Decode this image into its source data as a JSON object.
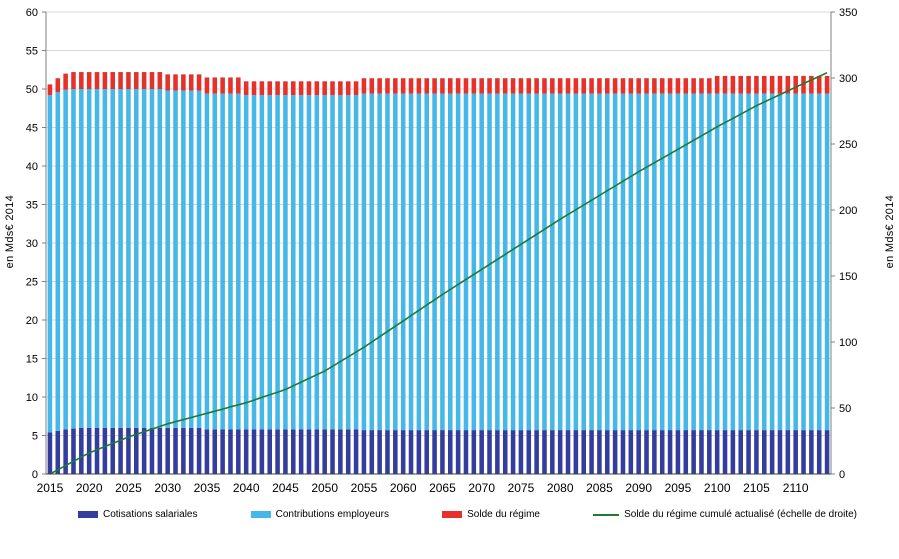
{
  "page": {
    "background": "#ffffff"
  },
  "chart_data": {
    "type": "bar",
    "title": "",
    "x_start": 2015,
    "x_count": 100,
    "x_ticks": [
      2015,
      2020,
      2025,
      2030,
      2035,
      2040,
      2045,
      2050,
      2055,
      2060,
      2065,
      2070,
      2075,
      2080,
      2085,
      2090,
      2095,
      2100,
      2105,
      2110
    ],
    "ylabel_left": "en Mds€ 2014",
    "ylabel_right": "en Mds€ 2014",
    "y_left": {
      "min": 0,
      "max": 60,
      "ticks": [
        0,
        5,
        10,
        15,
        20,
        25,
        30,
        35,
        40,
        45,
        50,
        55,
        60
      ]
    },
    "y_right": {
      "min": 0,
      "max": 350,
      "ticks": [
        0,
        50,
        100,
        150,
        200,
        250,
        300,
        350
      ]
    },
    "grid": true,
    "grid_color": "#d9d9d9",
    "axis_color": "#808080",
    "legend_position": "bottom",
    "series": [
      {
        "name": "Cotisations salariales",
        "type": "bar",
        "stack": true,
        "color": "#333d9e",
        "values": [
          5.4,
          5.6,
          5.8,
          5.9,
          6,
          6,
          6,
          6,
          6,
          6,
          6,
          6,
          6,
          6,
          6,
          6,
          6,
          6,
          6,
          6,
          5.8,
          5.8,
          5.8,
          5.8,
          5.8,
          5.8,
          5.8,
          5.8,
          5.8,
          5.8,
          5.8,
          5.8,
          5.8,
          5.8,
          5.8,
          5.8,
          5.8,
          5.8,
          5.8,
          5.8,
          5.7,
          5.7,
          5.7,
          5.7,
          5.7,
          5.7,
          5.7,
          5.7,
          5.7,
          5.7,
          5.7,
          5.7,
          5.7,
          5.7,
          5.7,
          5.7,
          5.7,
          5.7,
          5.7,
          5.7,
          5.7,
          5.7,
          5.7,
          5.7,
          5.7,
          5.7,
          5.7,
          5.7,
          5.7,
          5.7,
          5.7,
          5.7,
          5.7,
          5.7,
          5.7,
          5.7,
          5.7,
          5.7,
          5.7,
          5.7,
          5.7,
          5.7,
          5.7,
          5.7,
          5.7,
          5.7,
          5.7,
          5.7,
          5.7,
          5.7,
          5.7,
          5.7,
          5.7,
          5.7,
          5.7,
          5.7,
          5.7,
          5.7,
          5.7,
          5.7
        ]
      },
      {
        "name": "Contributions employeurs",
        "type": "bar",
        "stack": true,
        "color": "#45b7e8",
        "values": [
          43.8,
          44,
          44.1,
          44.1,
          44,
          44,
          44,
          44,
          44,
          44,
          44,
          44,
          44,
          44,
          44,
          43.8,
          43.8,
          43.8,
          43.8,
          43.8,
          43.6,
          43.6,
          43.6,
          43.6,
          43.6,
          43.4,
          43.4,
          43.4,
          43.4,
          43.4,
          43.4,
          43.4,
          43.4,
          43.4,
          43.4,
          43.4,
          43.4,
          43.4,
          43.4,
          43.4,
          43.7,
          43.7,
          43.7,
          43.7,
          43.7,
          43.7,
          43.7,
          43.7,
          43.7,
          43.7,
          43.7,
          43.7,
          43.7,
          43.7,
          43.7,
          43.7,
          43.7,
          43.7,
          43.7,
          43.7,
          43.7,
          43.7,
          43.7,
          43.7,
          43.7,
          43.7,
          43.7,
          43.7,
          43.7,
          43.7,
          43.7,
          43.7,
          43.7,
          43.7,
          43.7,
          43.7,
          43.7,
          43.7,
          43.7,
          43.7,
          43.7,
          43.7,
          43.7,
          43.7,
          43.7,
          43.7,
          43.7,
          43.7,
          43.7,
          43.7,
          43.7,
          43.7,
          43.7,
          43.7,
          43.7,
          43.7,
          43.7,
          43.7,
          43.7,
          43.7
        ]
      },
      {
        "name": "Solde du régime",
        "type": "bar",
        "stack": true,
        "color": "#e6312b",
        "values": [
          1.4,
          1.8,
          2.1,
          2.2,
          2.2,
          2.2,
          2.2,
          2.2,
          2.2,
          2.2,
          2.2,
          2.2,
          2.2,
          2.2,
          2.2,
          2.1,
          2.1,
          2.1,
          2.1,
          2.1,
          2.1,
          2.1,
          2.1,
          2.1,
          2.1,
          1.8,
          1.8,
          1.8,
          1.8,
          1.8,
          1.8,
          1.8,
          1.8,
          1.8,
          1.8,
          1.8,
          1.8,
          1.8,
          1.8,
          1.8,
          2,
          2,
          2,
          2,
          2,
          2,
          2,
          2,
          2,
          2,
          2,
          2,
          2,
          2,
          2,
          2,
          2,
          2,
          2,
          2,
          2,
          2,
          2,
          2,
          2,
          2,
          2,
          2,
          2,
          2,
          2,
          2,
          2,
          2,
          2,
          2,
          2,
          2,
          2,
          2,
          2,
          2,
          2,
          2,
          2,
          2.3,
          2.3,
          2.3,
          2.3,
          2.3,
          2.3,
          2.3,
          2.3,
          2.3,
          2.3,
          2.3,
          2.3,
          2.3,
          2.3,
          2.3
        ]
      },
      {
        "name": "Solde du régime cumulé actualisé (échelle de droite)",
        "type": "line",
        "axis": "right",
        "color": "#1f7a34",
        "values": [
          0,
          3.2,
          6.4,
          9.6,
          12.8,
          16,
          18.4,
          20.8,
          23.2,
          25.6,
          28,
          30,
          32,
          34,
          36,
          38,
          39.6,
          41.2,
          42.8,
          44.4,
          46,
          47.6,
          49.2,
          50.8,
          52.4,
          54,
          56,
          58,
          60,
          62,
          64,
          66.8,
          69.6,
          72.4,
          75.2,
          78,
          81.6,
          85.2,
          88.8,
          92.4,
          96,
          100,
          104,
          108,
          112,
          116,
          120,
          124,
          128,
          132,
          136,
          139.8,
          143.6,
          147.4,
          151.2,
          155,
          158.8,
          162.6,
          166.4,
          170.2,
          174,
          177.8,
          181.6,
          185.4,
          189.2,
          193,
          196.6,
          200.2,
          203.8,
          207.4,
          211,
          214.6,
          218.2,
          221.8,
          225.4,
          229,
          232.4,
          235.8,
          239.2,
          242.6,
          246,
          249.4,
          252.8,
          256.2,
          259.6,
          263,
          266.2,
          269.4,
          272.6,
          275.8,
          279,
          281.8,
          284.6,
          287.4,
          290.2,
          293,
          295.8,
          298.5,
          301.2,
          304
        ]
      }
    ]
  }
}
